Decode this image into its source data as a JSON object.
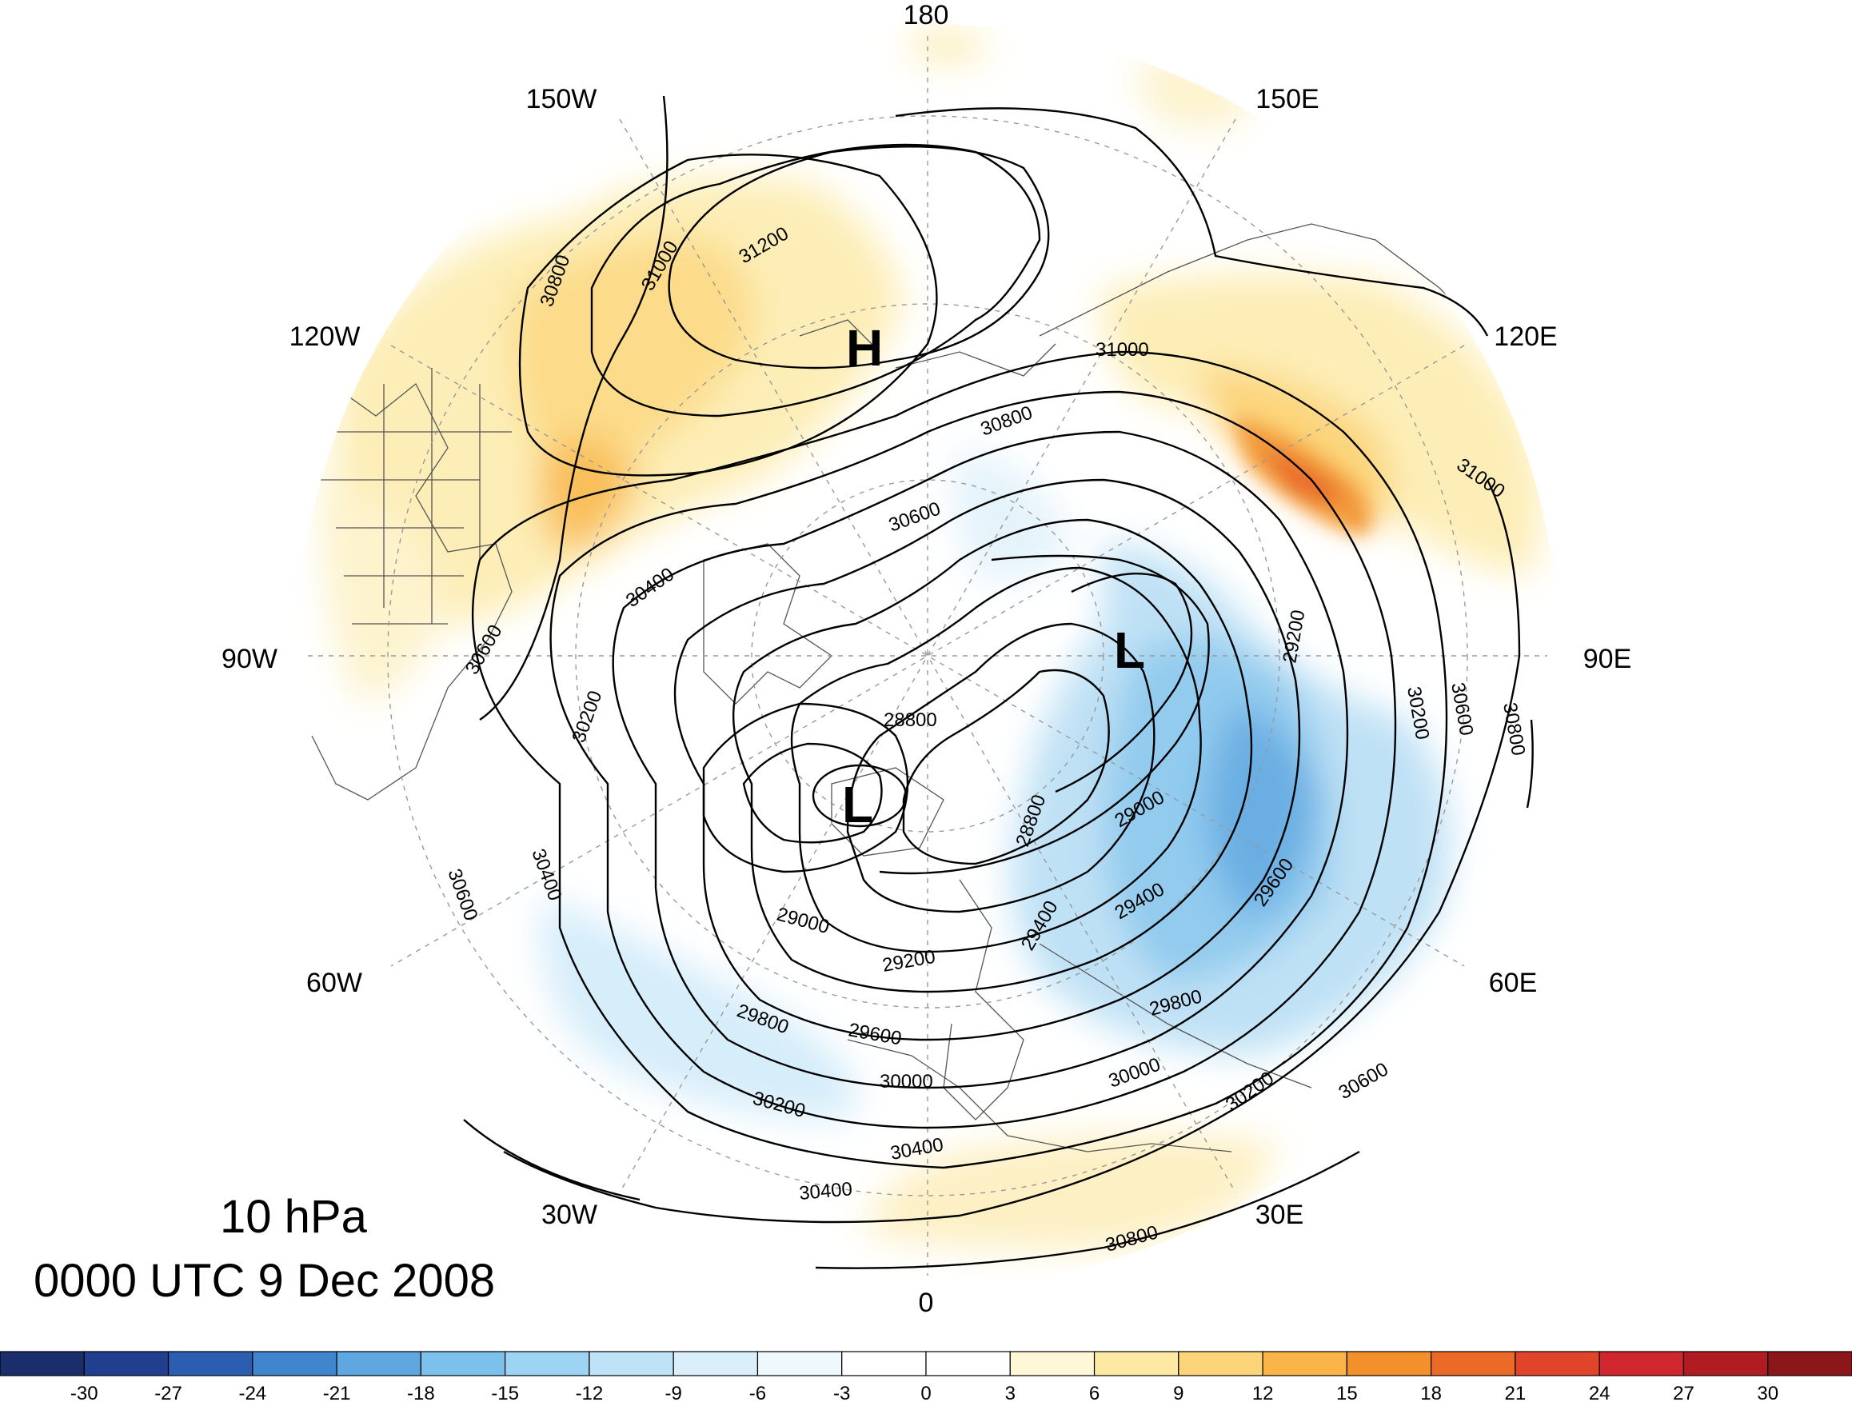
{
  "title": {
    "level": "10 hPa",
    "time": "0000 UTC 9 Dec 2008"
  },
  "longitude_labels": [
    {
      "key": "top",
      "text": "180"
    },
    {
      "key": "bottom",
      "text": "0"
    },
    {
      "key": "left",
      "text": "90W"
    },
    {
      "key": "right",
      "text": "90E"
    },
    {
      "key": "n150w",
      "text": "150W"
    },
    {
      "key": "n150e",
      "text": "150E"
    },
    {
      "key": "n120w",
      "text": "120W"
    },
    {
      "key": "n120e",
      "text": "120E"
    },
    {
      "key": "n60w",
      "text": "60W"
    },
    {
      "key": "n60e",
      "text": "60E"
    },
    {
      "key": "n30w",
      "text": "30W"
    },
    {
      "key": "n30e",
      "text": "30E"
    }
  ],
  "pressure_centers": [
    {
      "type": "H",
      "text": "H"
    },
    {
      "type": "L",
      "text": "L"
    },
    {
      "type": "L",
      "text": "L"
    }
  ],
  "contour_labels": [
    "31200",
    "31000",
    "31000",
    "31000",
    "30800",
    "30800",
    "30800",
    "30800",
    "30600",
    "30600",
    "30600",
    "30600",
    "30600",
    "30400",
    "30400",
    "30400",
    "30400",
    "30200",
    "30200",
    "30200",
    "30200",
    "30000",
    "30000",
    "29800",
    "29800",
    "29600",
    "29600",
    "29400",
    "29400",
    "29200",
    "29200",
    "29000",
    "29000",
    "28800",
    "28800"
  ],
  "colorbar": {
    "labels": [
      "-30",
      "-27",
      "-24",
      "-21",
      "-18",
      "-15",
      "-12",
      "-9",
      "-6",
      "-3",
      "0",
      "3",
      "6",
      "9",
      "12",
      "15",
      "18",
      "21",
      "24",
      "27",
      "30"
    ],
    "colors": [
      "#1b2d6b",
      "#213f8e",
      "#2b5eb0",
      "#3f86cf",
      "#5fa7e0",
      "#7cc0ec",
      "#9dd3f3",
      "#bee2f6",
      "#daeffa",
      "#eef8fd",
      "#ffffff",
      "#ffffff",
      "#fff7d8",
      "#fde9a4",
      "#fcd479",
      "#fab447",
      "#f4902b",
      "#eb6a27",
      "#e0452b",
      "#d0262d",
      "#b01c21",
      "#8c171b"
    ]
  }
}
